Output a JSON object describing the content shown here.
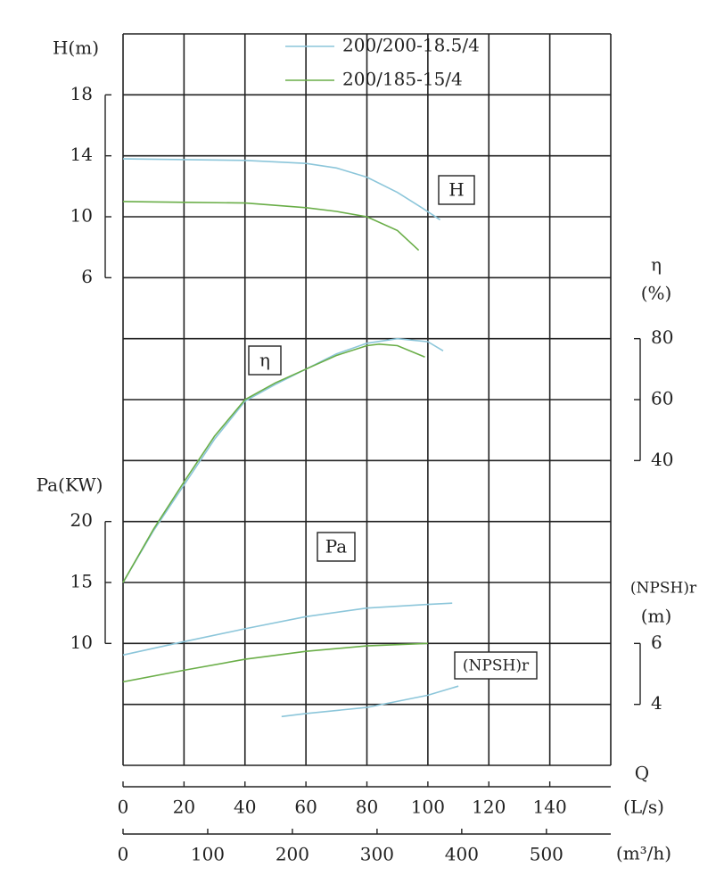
{
  "chart_data": {
    "type": "line",
    "x_axes": [
      {
        "label": "(L/s)",
        "lim": [
          0,
          160
        ],
        "ticks": [
          0,
          20,
          40,
          60,
          80,
          100,
          120,
          140
        ]
      },
      {
        "label": "(m³/h)",
        "lim": [
          0,
          576
        ],
        "ticks": [
          0,
          100,
          200,
          300,
          400,
          500
        ]
      }
    ],
    "xlabel": "Q",
    "axes": {
      "H": {
        "label": "H(m)",
        "lim": [
          6,
          18
        ],
        "ticks": [
          6,
          10,
          14,
          18
        ]
      },
      "eta": {
        "label": "η",
        "unit": "(%)",
        "lim": [
          40,
          80
        ],
        "ticks": [
          40,
          60,
          80
        ]
      },
      "Pa": {
        "label": "Pa(KW)",
        "lim": [
          10,
          20
        ],
        "ticks": [
          10,
          15,
          20
        ]
      },
      "NPSH": {
        "label": "(NPSH)r",
        "unit": "(m)",
        "lim": [
          4,
          6
        ],
        "ticks": [
          4,
          6
        ]
      }
    },
    "annotations": [
      "H",
      "η",
      "Pa",
      "(NPSH)r"
    ],
    "series": [
      {
        "name": "200/200-18.5/4",
        "color": "#8cc6da",
        "curves": {
          "H": {
            "x": [
              0,
              20,
              40,
              60,
              70,
              80,
              90,
              98,
              104
            ],
            "values": [
              13.8,
              13.75,
              13.7,
              13.5,
              13.2,
              12.6,
              11.6,
              10.6,
              9.8
            ]
          },
          "eta": {
            "x": [
              0,
              10,
              20,
              30,
              40,
              50,
              60,
              70,
              80,
              90,
              100,
              105
            ],
            "values": [
              0,
              17,
              32,
              47,
              59.5,
              65,
              70,
              75,
              78.5,
              80,
              79,
              76
            ]
          },
          "Pa": {
            "x": [
              0,
              20,
              40,
              60,
              80,
              100,
              108
            ],
            "values": [
              9.05,
              10.15,
              11.2,
              12.2,
              12.9,
              13.2,
              13.3
            ]
          },
          "NPSH": {
            "x": [
              52,
              60,
              80,
              100,
              110
            ],
            "values": [
              3.6,
              3.7,
              3.9,
              4.3,
              4.6
            ]
          }
        }
      },
      {
        "name": "200/185-15/4",
        "color": "#6aae48",
        "curves": {
          "H": {
            "x": [
              0,
              20,
              40,
              60,
              70,
              80,
              90,
              97
            ],
            "values": [
              11.0,
              10.95,
              10.9,
              10.6,
              10.35,
              10.0,
              9.1,
              7.8
            ]
          },
          "eta": {
            "x": [
              0,
              10,
              20,
              30,
              40,
              50,
              60,
              70,
              80,
              84,
              90,
              99
            ],
            "values": [
              0,
              17.5,
              33,
              48,
              60,
              65.5,
              70,
              74.5,
              77.7,
              78.2,
              77.7,
              74
            ]
          },
          "Pa": {
            "x": [
              0,
              20,
              40,
              60,
              80,
              100
            ],
            "values": [
              6.85,
              7.8,
              8.7,
              9.35,
              9.8,
              10.0
            ]
          }
        }
      }
    ]
  }
}
